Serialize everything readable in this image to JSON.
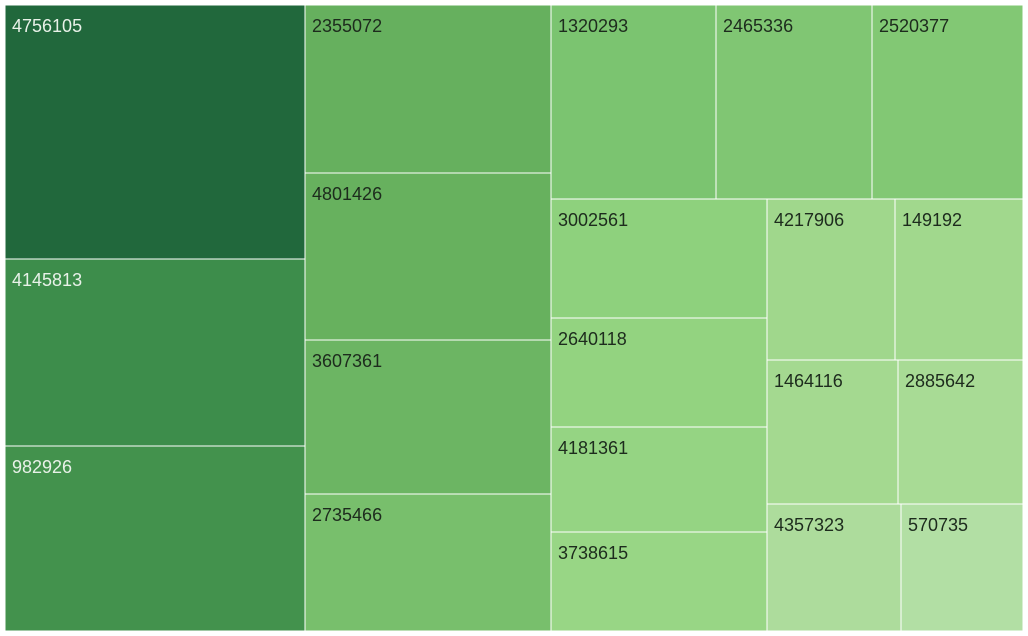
{
  "chart_data": {
    "type": "treemap",
    "title": "",
    "legend": "none",
    "tiles": [
      {
        "label": "4756105",
        "value": 4756105,
        "color": "#21683c",
        "text_color": "#e8f1e8"
      },
      {
        "label": "4145813",
        "value": 4145813,
        "color": "#3d8d4b",
        "text_color": "#e8f1e8"
      },
      {
        "label": "982926",
        "value": 982926,
        "color": "#43924d",
        "text_color": "#e8f1e8"
      },
      {
        "label": "2355072",
        "value": 2355072,
        "color": "#66b05e",
        "text_color": "#1d2b1d"
      },
      {
        "label": "4801426",
        "value": 4801426,
        "color": "#67b15e",
        "text_color": "#1d2b1d"
      },
      {
        "label": "3607361",
        "value": 3607361,
        "color": "#6cb563",
        "text_color": "#1d2b1d"
      },
      {
        "label": "2735466",
        "value": 2735466,
        "color": "#78bf6c",
        "text_color": "#1d2b1d"
      },
      {
        "label": "1320293",
        "value": 1320293,
        "color": "#7bc470",
        "text_color": "#1d2b1d"
      },
      {
        "label": "2465336",
        "value": 2465336,
        "color": "#80c673",
        "text_color": "#1d2b1d"
      },
      {
        "label": "2520377",
        "value": 2520377,
        "color": "#82c874",
        "text_color": "#1d2b1d"
      },
      {
        "label": "3002561",
        "value": 3002561,
        "color": "#8ed17d",
        "text_color": "#1d2b1d"
      },
      {
        "label": "2640118",
        "value": 2640118,
        "color": "#93d380",
        "text_color": "#1d2b1d"
      },
      {
        "label": "4181361",
        "value": 4181361,
        "color": "#95d483",
        "text_color": "#1d2b1d"
      },
      {
        "label": "3738615",
        "value": 3738615,
        "color": "#98d685",
        "text_color": "#1d2b1d"
      },
      {
        "label": "4217906",
        "value": 4217906,
        "color": "#a0d78c",
        "text_color": "#1d2b1d"
      },
      {
        "label": "149192",
        "value": 149192,
        "color": "#a1d88d",
        "text_color": "#1d2b1d"
      },
      {
        "label": "1464116",
        "value": 1464116,
        "color": "#a4d990",
        "text_color": "#1d2b1d"
      },
      {
        "label": "2885642",
        "value": 2885642,
        "color": "#a8db95",
        "text_color": "#1d2b1d"
      },
      {
        "label": "4357323",
        "value": 4357323,
        "color": "#addc9c",
        "text_color": "#1d2b1d"
      },
      {
        "label": "570735",
        "value": 570735,
        "color": "#b2dfa4",
        "text_color": "#1d2b1d"
      }
    ]
  }
}
